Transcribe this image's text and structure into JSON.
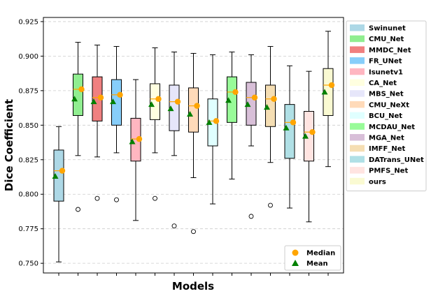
{
  "chart_data": {
    "type": "boxplot",
    "xlabel": "Models",
    "ylabel": "Dice Coefficient",
    "ylim": [
      0.743,
      0.928
    ],
    "yticks": [
      0.75,
      0.775,
      0.8,
      0.825,
      0.85,
      0.875,
      0.9,
      0.925
    ],
    "ytick_labels": [
      "0.750",
      "0.775",
      "0.800",
      "0.825",
      "0.850",
      "0.875",
      "0.900",
      "0.925"
    ],
    "grid": "horizontal-dashed",
    "legend_position": "outside-right-top",
    "summary_legend_position": "bottom-right",
    "summary_legend": [
      {
        "label": "Median",
        "marker": "circle",
        "color": "#FFA500"
      },
      {
        "label": "Mean",
        "marker": "triangle",
        "color": "#008000"
      }
    ],
    "series": [
      {
        "name": "Swinunet",
        "color": "#ADD8E6",
        "whisker_low": 0.751,
        "q1": 0.795,
        "median": 0.817,
        "q3": 0.832,
        "whisker_high": 0.849,
        "mean": 0.813,
        "outliers": []
      },
      {
        "name": "CMU_Net",
        "color": "#90EE90",
        "whisker_low": 0.828,
        "q1": 0.857,
        "median": 0.876,
        "q3": 0.887,
        "whisker_high": 0.91,
        "mean": 0.869,
        "outliers": [
          0.789
        ]
      },
      {
        "name": "MMDC_Net",
        "color": "#F08080",
        "whisker_low": 0.827,
        "q1": 0.853,
        "median": 0.87,
        "q3": 0.885,
        "whisker_high": 0.908,
        "mean": 0.867,
        "outliers": [
          0.797
        ]
      },
      {
        "name": "FR_UNet",
        "color": "#87CEFA",
        "whisker_low": 0.83,
        "q1": 0.85,
        "median": 0.872,
        "q3": 0.883,
        "whisker_high": 0.907,
        "mean": 0.867,
        "outliers": [
          0.796
        ]
      },
      {
        "name": "Isunetv1",
        "color": "#FFB6C1",
        "whisker_low": 0.781,
        "q1": 0.824,
        "median": 0.84,
        "q3": 0.855,
        "whisker_high": 0.883,
        "mean": 0.838,
        "outliers": []
      },
      {
        "name": "CA_Net",
        "color": "#FFFFE0",
        "whisker_low": 0.83,
        "q1": 0.854,
        "median": 0.869,
        "q3": 0.88,
        "whisker_high": 0.906,
        "mean": 0.865,
        "outliers": [
          0.797
        ]
      },
      {
        "name": "MBS_Net",
        "color": "#E6E6FA",
        "whisker_low": 0.828,
        "q1": 0.846,
        "median": 0.867,
        "q3": 0.879,
        "whisker_high": 0.903,
        "mean": 0.862,
        "outliers": [
          0.777
        ]
      },
      {
        "name": "CMU_NeXt",
        "color": "#FFDAB9",
        "whisker_low": 0.812,
        "q1": 0.845,
        "median": 0.864,
        "q3": 0.877,
        "whisker_high": 0.902,
        "mean": 0.858,
        "outliers": [
          0.773
        ]
      },
      {
        "name": "BCU_Net",
        "color": "#E0FFFF",
        "whisker_low": 0.793,
        "q1": 0.835,
        "median": 0.853,
        "q3": 0.869,
        "whisker_high": 0.901,
        "mean": 0.852,
        "outliers": []
      },
      {
        "name": "MCDAU_Net",
        "color": "#98FB98",
        "whisker_low": 0.811,
        "q1": 0.852,
        "median": 0.874,
        "q3": 0.885,
        "whisker_high": 0.903,
        "mean": 0.868,
        "outliers": []
      },
      {
        "name": "MGA_Net",
        "color": "#D8BFD8",
        "whisker_low": 0.835,
        "q1": 0.85,
        "median": 0.87,
        "q3": 0.881,
        "whisker_high": 0.901,
        "mean": 0.865,
        "outliers": [
          0.784
        ]
      },
      {
        "name": "IMFF_Net",
        "color": "#F5DEB3",
        "whisker_low": 0.823,
        "q1": 0.849,
        "median": 0.869,
        "q3": 0.879,
        "whisker_high": 0.907,
        "mean": 0.863,
        "outliers": [
          0.792
        ]
      },
      {
        "name": "DATrans_UNet",
        "color": "#B0E0E6",
        "whisker_low": 0.79,
        "q1": 0.826,
        "median": 0.852,
        "q3": 0.865,
        "whisker_high": 0.893,
        "mean": 0.848,
        "outliers": []
      },
      {
        "name": "PMFS_Net",
        "color": "#FFE4E1",
        "whisker_low": 0.78,
        "q1": 0.824,
        "median": 0.845,
        "q3": 0.86,
        "whisker_high": 0.889,
        "mean": 0.842,
        "outliers": []
      },
      {
        "name": "ours",
        "color": "#FAFAD2",
        "whisker_low": 0.82,
        "q1": 0.857,
        "median": 0.879,
        "q3": 0.891,
        "whisker_high": 0.918,
        "mean": 0.874,
        "outliers": []
      }
    ]
  }
}
